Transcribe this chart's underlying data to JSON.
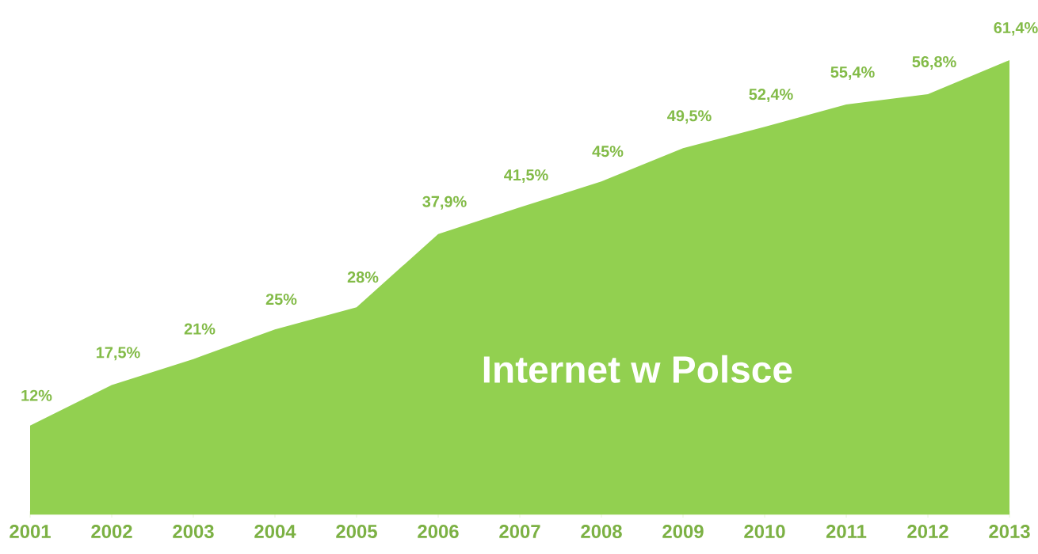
{
  "chart_data": {
    "type": "area",
    "title": "Internet w Polsce",
    "categories": [
      "2001",
      "2002",
      "2003",
      "2004",
      "2005",
      "2006",
      "2007",
      "2008",
      "2009",
      "2010",
      "2011",
      "2012",
      "2013"
    ],
    "values": [
      12,
      17.5,
      21,
      25,
      28,
      37.9,
      41.5,
      45,
      49.5,
      52.4,
      55.4,
      56.8,
      61.4
    ],
    "value_labels": [
      "12%",
      "17,5%",
      "21%",
      "25%",
      "28%",
      "37,9%",
      "41,5%",
      "45%",
      "49,5%",
      "52,4%",
      "55,4%",
      "56,8%",
      "61,4%"
    ],
    "color": "#92d050"
  }
}
